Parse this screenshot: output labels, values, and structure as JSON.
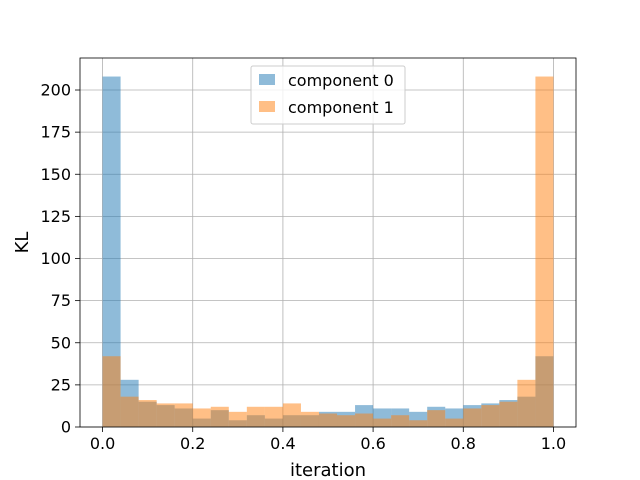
{
  "chart_data": {
    "type": "bar",
    "subtype": "histogram",
    "xlabel": "iteration",
    "ylabel": "KL",
    "xlim": [
      -0.05,
      1.05
    ],
    "ylim": [
      0,
      219
    ],
    "x_ticks": [
      "0.0",
      "0.2",
      "0.4",
      "0.6",
      "0.8",
      "1.0"
    ],
    "y_ticks": [
      "0",
      "25",
      "50",
      "75",
      "100",
      "125",
      "150",
      "175",
      "200"
    ],
    "grid": true,
    "legend_position": "top-center",
    "bin_edges": [
      0.0,
      0.04,
      0.08,
      0.12,
      0.16,
      0.2,
      0.24,
      0.28,
      0.32,
      0.36,
      0.4,
      0.44,
      0.48,
      0.52,
      0.56,
      0.6,
      0.64,
      0.68,
      0.72,
      0.76,
      0.8,
      0.84,
      0.88,
      0.92,
      0.96,
      1.0
    ],
    "series": [
      {
        "name": "component 0",
        "color": "#1f77b4",
        "values": [
          208,
          28,
          15,
          13,
          11,
          5,
          10,
          4,
          7,
          5,
          7,
          7,
          9,
          9,
          13,
          11,
          11,
          9,
          12,
          11,
          13,
          14,
          16,
          18,
          42
        ]
      },
      {
        "name": "component 1",
        "color": "#ff7f0e",
        "values": [
          42,
          18,
          16,
          14,
          14,
          11,
          12,
          9,
          12,
          12,
          14,
          9,
          8,
          7,
          8,
          5,
          7,
          4,
          10,
          5,
          11,
          13,
          15,
          28,
          208
        ]
      }
    ]
  }
}
